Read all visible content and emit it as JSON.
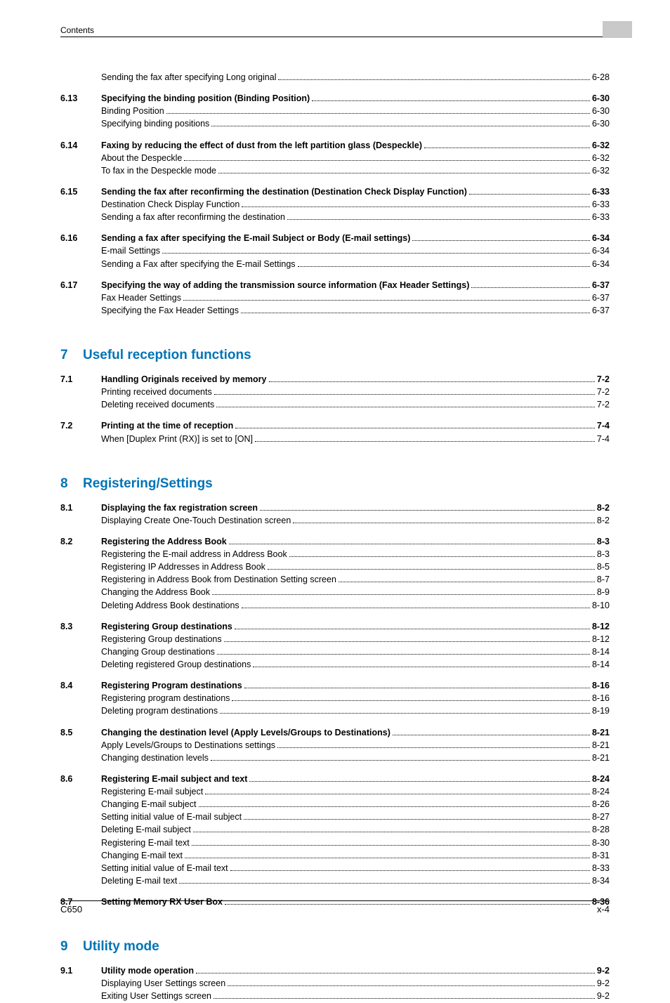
{
  "header": {
    "left": "Contents"
  },
  "footer": {
    "left": "C650",
    "right": "x-4"
  },
  "colors": {
    "heading": "#0074b6",
    "text": "#000000",
    "tab": "#c9c9c9",
    "rule": "#000000",
    "background": "#ffffff"
  },
  "typography": {
    "body_family": "Arial, Helvetica, sans-serif",
    "body_size_pt": 9.5,
    "heading_size_pt": 14,
    "heading_weight": "bold"
  },
  "pre_blocks": [
    {
      "num": "",
      "entries": [
        {
          "lvl": 3,
          "label": "Sending the fax after specifying Long original",
          "page": "6-28"
        }
      ]
    },
    {
      "num": "6.13",
      "entries": [
        {
          "lvl": 2,
          "label": "Specifying the binding position (Binding Position)",
          "page": "6-30"
        },
        {
          "lvl": 3,
          "label": "Binding Position",
          "page": "6-30"
        },
        {
          "lvl": 3,
          "label": "Specifying binding positions",
          "page": "6-30"
        }
      ]
    },
    {
      "num": "6.14",
      "entries": [
        {
          "lvl": 2,
          "label": "Faxing by reducing the effect of dust from the left partition glass (Despeckle)",
          "page": "6-32"
        },
        {
          "lvl": 3,
          "label": "About the Despeckle",
          "page": "6-32"
        },
        {
          "lvl": 3,
          "label": "To fax in the Despeckle mode",
          "page": "6-32"
        }
      ]
    },
    {
      "num": "6.15",
      "entries": [
        {
          "lvl": 2,
          "label": "Sending the fax after reconfirming the destination (Destination Check Display Function)",
          "page": "6-33"
        },
        {
          "lvl": 3,
          "label": "Destination Check Display Function",
          "page": "6-33"
        },
        {
          "lvl": 3,
          "label": "Sending a fax after reconfirming the destination",
          "page": "6-33"
        }
      ]
    },
    {
      "num": "6.16",
      "entries": [
        {
          "lvl": 2,
          "label": "Sending a fax after specifying the E-mail Subject or Body (E-mail settings)",
          "page": "6-34"
        },
        {
          "lvl": 3,
          "label": "E-mail Settings",
          "page": "6-34"
        },
        {
          "lvl": 3,
          "label": "Sending a Fax after specifying the E-mail Settings",
          "page": "6-34"
        }
      ]
    },
    {
      "num": "6.17",
      "entries": [
        {
          "lvl": 2,
          "label": "Specifying the way of adding the transmission source information (Fax Header Settings)",
          "page": "6-37"
        },
        {
          "lvl": 3,
          "label": "Fax Header Settings",
          "page": "6-37"
        },
        {
          "lvl": 3,
          "label": "Specifying the Fax Header Settings",
          "page": "6-37"
        }
      ]
    }
  ],
  "sections": [
    {
      "num": "7",
      "title": "Useful reception functions",
      "blocks": [
        {
          "num": "7.1",
          "entries": [
            {
              "lvl": 2,
              "label": "Handling Originals received by memory",
              "page": "7-2"
            },
            {
              "lvl": 3,
              "label": "Printing received documents",
              "page": "7-2"
            },
            {
              "lvl": 3,
              "label": "Deleting received documents",
              "page": "7-2"
            }
          ]
        },
        {
          "num": "7.2",
          "entries": [
            {
              "lvl": 2,
              "label": "Printing at the time of reception",
              "page": "7-4"
            },
            {
              "lvl": 3,
              "label": "When [Duplex Print (RX)] is set to [ON]",
              "page": "7-4"
            }
          ]
        }
      ]
    },
    {
      "num": "8",
      "title": "Registering/Settings",
      "blocks": [
        {
          "num": "8.1",
          "entries": [
            {
              "lvl": 2,
              "label": "Displaying the fax registration screen",
              "page": "8-2"
            },
            {
              "lvl": 3,
              "label": "Displaying Create One-Touch Destination screen",
              "page": "8-2"
            }
          ]
        },
        {
          "num": "8.2",
          "entries": [
            {
              "lvl": 2,
              "label": "Registering the Address Book",
              "page": "8-3"
            },
            {
              "lvl": 3,
              "label": "Registering the E-mail address in Address Book",
              "page": "8-3"
            },
            {
              "lvl": 3,
              "label": "Registering IP Addresses in Address Book",
              "page": "8-5"
            },
            {
              "lvl": 3,
              "label": "Registering in Address Book from Destination Setting screen",
              "page": "8-7"
            },
            {
              "lvl": 3,
              "label": "Changing the Address Book",
              "page": "8-9"
            },
            {
              "lvl": 3,
              "label": "Deleting Address Book destinations",
              "page": "8-10"
            }
          ]
        },
        {
          "num": "8.3",
          "entries": [
            {
              "lvl": 2,
              "label": "Registering Group destinations",
              "page": "8-12"
            },
            {
              "lvl": 3,
              "label": "Registering Group destinations",
              "page": "8-12"
            },
            {
              "lvl": 3,
              "label": "Changing Group destinations",
              "page": "8-14"
            },
            {
              "lvl": 3,
              "label": "Deleting registered Group destinations",
              "page": "8-14"
            }
          ]
        },
        {
          "num": "8.4",
          "entries": [
            {
              "lvl": 2,
              "label": "Registering Program destinations",
              "page": "8-16"
            },
            {
              "lvl": 3,
              "label": "Registering program destinations",
              "page": "8-16"
            },
            {
              "lvl": 3,
              "label": "Deleting program destinations",
              "page": "8-19"
            }
          ]
        },
        {
          "num": "8.5",
          "entries": [
            {
              "lvl": 2,
              "label": "Changing the destination level (Apply Levels/Groups to Destinations)",
              "page": "8-21"
            },
            {
              "lvl": 3,
              "label": "Apply Levels/Groups to Destinations settings",
              "page": "8-21"
            },
            {
              "lvl": 3,
              "label": "Changing destination levels",
              "page": "8-21"
            }
          ]
        },
        {
          "num": "8.6",
          "entries": [
            {
              "lvl": 2,
              "label": "Registering E-mail subject and text",
              "page": "8-24"
            },
            {
              "lvl": 3,
              "label": "Registering E-mail subject",
              "page": "8-24"
            },
            {
              "lvl": 3,
              "label": "Changing E-mail subject",
              "page": "8-26"
            },
            {
              "lvl": 3,
              "label": "Setting initial value of E-mail subject",
              "page": "8-27"
            },
            {
              "lvl": 3,
              "label": "Deleting E-mail subject",
              "page": "8-28"
            },
            {
              "lvl": 3,
              "label": "Registering E-mail text",
              "page": "8-30"
            },
            {
              "lvl": 3,
              "label": "Changing E-mail text",
              "page": "8-31"
            },
            {
              "lvl": 3,
              "label": "Setting initial value of E-mail text",
              "page": "8-33"
            },
            {
              "lvl": 3,
              "label": "Deleting E-mail text",
              "page": "8-34"
            }
          ]
        },
        {
          "num": "8.7",
          "entries": [
            {
              "lvl": 2,
              "label": "Setting Memory RX User Box",
              "page": "8-36"
            }
          ]
        }
      ]
    },
    {
      "num": "9",
      "title": "Utility mode",
      "blocks": [
        {
          "num": "9.1",
          "entries": [
            {
              "lvl": 2,
              "label": "Utility mode operation",
              "page": "9-2"
            },
            {
              "lvl": 3,
              "label": "Displaying User Settings screen",
              "page": "9-2"
            },
            {
              "lvl": 3,
              "label": "Exiting User Settings screen",
              "page": "9-2"
            }
          ]
        }
      ]
    }
  ]
}
